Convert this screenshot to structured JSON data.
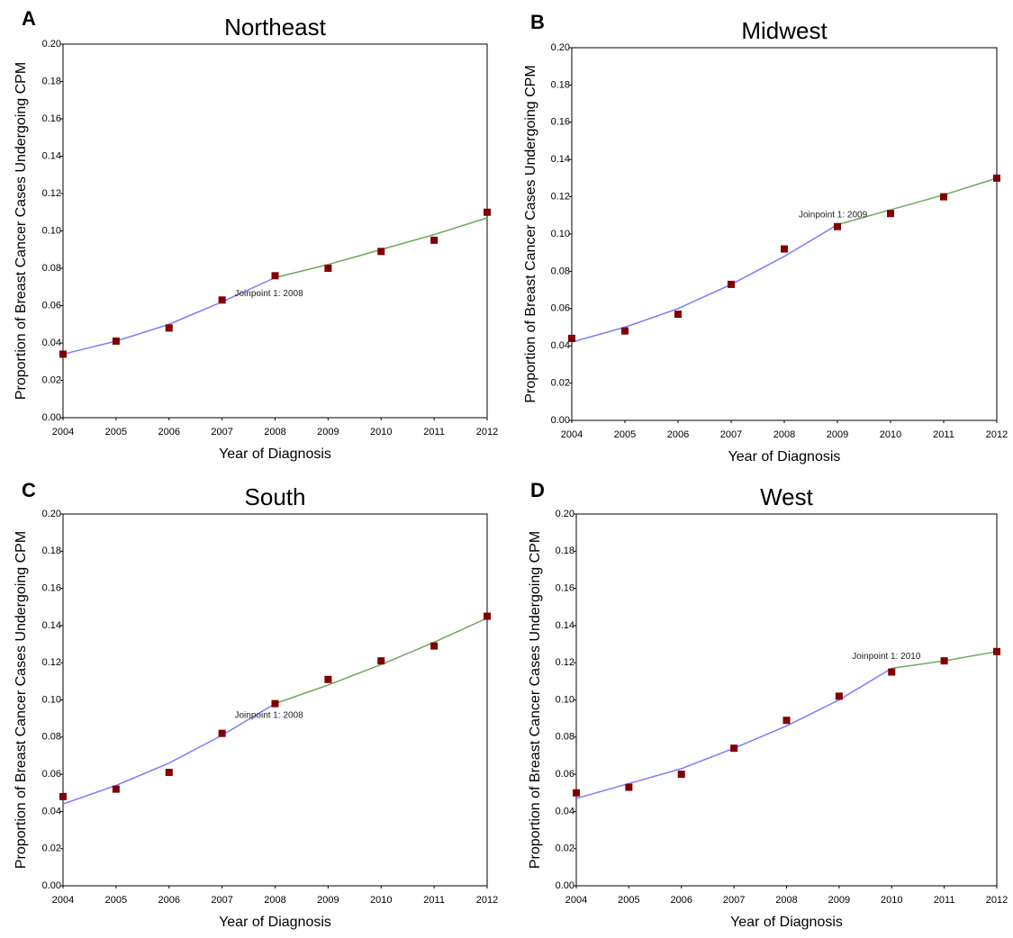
{
  "chart_data": [
    {
      "type": "line",
      "panel": "A",
      "title": "Northeast",
      "xlabel": "Year of Diagnosis",
      "ylabel": "Proportion of Breast Cancer Cases Undergoing CPM",
      "annotation": "Joinpoint 1:  2008",
      "x": [
        2004,
        2005,
        2006,
        2007,
        2008,
        2009,
        2010,
        2011,
        2012
      ],
      "series": [
        {
          "style": "markers",
          "color": "#800000",
          "values": [
            0.034,
            0.041,
            0.048,
            0.063,
            0.076,
            0.08,
            0.089,
            0.095,
            0.11
          ]
        },
        {
          "style": "line",
          "color": "#7b7bff",
          "values": [
            0.034,
            0.041,
            0.05,
            0.062,
            0.075,
            null,
            null,
            null,
            null
          ]
        },
        {
          "style": "line",
          "color": "#6aaa5a",
          "values": [
            null,
            null,
            null,
            null,
            0.075,
            0.082,
            0.09,
            0.098,
            0.107
          ]
        }
      ],
      "xlim": [
        2004,
        2012
      ],
      "xticks": [
        2004,
        2005,
        2006,
        2007,
        2008,
        2009,
        2010,
        2011,
        2012
      ],
      "ylim": [
        0,
        0.2
      ],
      "yticks": [
        {
          "value": 0,
          "label": "0.00"
        },
        0.02,
        0.04,
        0.06,
        0.08,
        {
          "value": 0.1,
          "label": "0.10"
        },
        0.12,
        0.14,
        0.16,
        0.18,
        {
          "value": 0.2,
          "label": "0.20"
        }
      ]
    },
    {
      "type": "line",
      "panel": "B",
      "title": "Midwest",
      "xlabel": "Year of Diagnosis",
      "ylabel": "Proportion of Breast Cancer Cases Undergoing CPM",
      "annotation": "Joinpoint 1:  2009",
      "x": [
        2004,
        2005,
        2006,
        2007,
        2008,
        2009,
        2010,
        2011,
        2012
      ],
      "series": [
        {
          "style": "markers",
          "color": "#800000",
          "values": [
            0.044,
            0.048,
            0.057,
            0.073,
            0.092,
            0.104,
            0.111,
            0.12,
            0.13
          ]
        },
        {
          "style": "line",
          "color": "#7b7bff",
          "values": [
            0.042,
            0.05,
            0.06,
            0.073,
            0.088,
            0.105,
            null,
            null,
            null
          ]
        },
        {
          "style": "line",
          "color": "#6aaa5a",
          "values": [
            null,
            null,
            null,
            null,
            null,
            0.105,
            0.113,
            0.121,
            0.13
          ]
        }
      ],
      "xlim": [
        2004,
        2012
      ],
      "xticks": [
        2004,
        2005,
        2006,
        2007,
        2008,
        2009,
        2010,
        2011,
        2012
      ],
      "ylim": [
        0,
        0.2
      ],
      "yticks": [
        {
          "value": 0,
          "label": "0.00"
        },
        0.02,
        0.04,
        0.06,
        0.08,
        {
          "value": 0.1,
          "label": "0.10"
        },
        0.12,
        0.14,
        0.16,
        0.18,
        {
          "value": 0.2,
          "label": "0.20"
        }
      ]
    },
    {
      "type": "line",
      "panel": "C",
      "title": "South",
      "xlabel": "Year of Diagnosis",
      "ylabel": "Proportion of Breast Cancer Cases Undergoing CPM",
      "annotation": "Joinpoint 1:  2008",
      "x": [
        2004,
        2005,
        2006,
        2007,
        2008,
        2009,
        2010,
        2011,
        2012
      ],
      "series": [
        {
          "style": "markers",
          "color": "#800000",
          "values": [
            0.048,
            0.052,
            0.061,
            0.082,
            0.098,
            0.111,
            0.121,
            0.129,
            0.145
          ]
        },
        {
          "style": "line",
          "color": "#7b7bff",
          "values": [
            0.044,
            0.054,
            0.066,
            0.081,
            0.098,
            null,
            null,
            null,
            null
          ]
        },
        {
          "style": "line",
          "color": "#6aaa5a",
          "values": [
            null,
            null,
            null,
            null,
            0.098,
            0.108,
            0.119,
            0.131,
            0.144
          ]
        }
      ],
      "xlim": [
        2004,
        2012
      ],
      "xticks": [
        2004,
        2005,
        2006,
        2007,
        2008,
        2009,
        2010,
        2011,
        2012
      ],
      "ylim": [
        0,
        0.2
      ],
      "yticks": [
        {
          "value": 0,
          "label": "0.00"
        },
        0.02,
        0.04,
        0.06,
        0.08,
        {
          "value": 0.1,
          "label": "0.10"
        },
        0.12,
        0.14,
        0.16,
        0.18,
        {
          "value": 0.2,
          "label": "0.20"
        }
      ]
    },
    {
      "type": "line",
      "panel": "D",
      "title": "West",
      "xlabel": "Year of Diagnosis",
      "ylabel": "Proportion of Breast Cancer Cases Undergoing CPM",
      "annotation": "Joinpoint 1:  2010",
      "x": [
        2004,
        2005,
        2006,
        2007,
        2008,
        2009,
        2010,
        2011,
        2012
      ],
      "series": [
        {
          "style": "markers",
          "color": "#800000",
          "values": [
            0.05,
            0.053,
            0.06,
            0.074,
            0.089,
            0.102,
            0.115,
            0.121,
            0.126
          ]
        },
        {
          "style": "line",
          "color": "#7b7bff",
          "values": [
            0.047,
            0.055,
            0.063,
            0.074,
            0.086,
            0.1,
            0.117,
            null,
            null
          ]
        },
        {
          "style": "line",
          "color": "#6aaa5a",
          "values": [
            null,
            null,
            null,
            null,
            null,
            null,
            0.117,
            0.121,
            0.126
          ]
        }
      ],
      "xlim": [
        2004,
        2012
      ],
      "xticks": [
        2004,
        2005,
        2006,
        2007,
        2008,
        2009,
        2010,
        2011,
        2012
      ],
      "ylim": [
        0,
        0.2
      ],
      "yticks": [
        {
          "value": 0,
          "label": "0.00"
        },
        0.02,
        0.04,
        0.06,
        0.08,
        {
          "value": 0.1,
          "label": "0.10"
        },
        0.12,
        0.14,
        0.16,
        0.18,
        {
          "value": 0.2,
          "label": "0.20"
        }
      ]
    }
  ]
}
